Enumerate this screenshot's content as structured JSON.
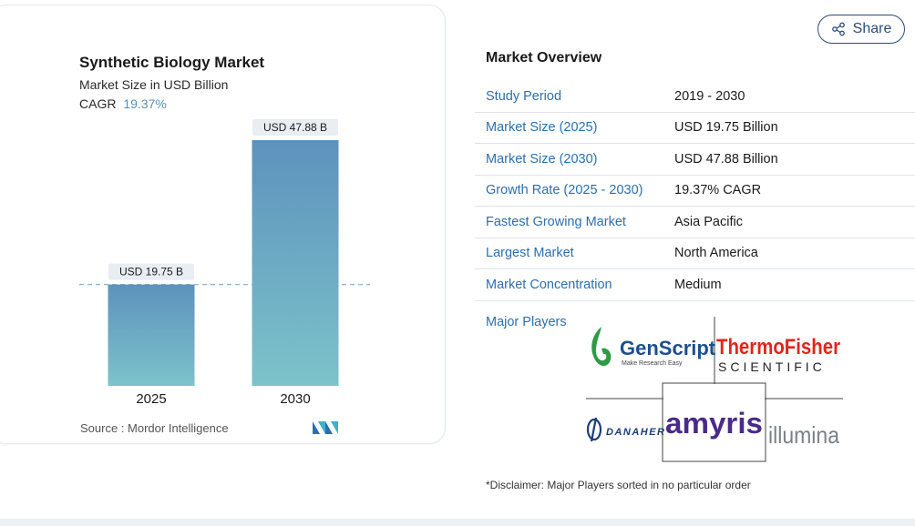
{
  "chart_data": {
    "type": "bar",
    "title": "Synthetic Biology Market",
    "subtitle": "Market Size in USD Billion",
    "cagr_label": "CAGR",
    "cagr_value": "19.37%",
    "categories": [
      "2025",
      "2030"
    ],
    "values": [
      19.75,
      47.88
    ],
    "data_labels": [
      "USD 19.75 B",
      "USD 47.88 B"
    ],
    "ylim": [
      0,
      50
    ],
    "reference_line_value": 19.75,
    "grid": false,
    "colors": {
      "bar_top": "#5d92bd",
      "bar_bottom": "#7cc3ca",
      "reference_line": "#8fb3cf",
      "label_bg": "#e8eef2"
    }
  },
  "source": {
    "label": "Source :",
    "value": "Mordor Intelligence"
  },
  "share": {
    "label": "Share",
    "icon": "share-icon"
  },
  "overview": {
    "title": "Market Overview",
    "rows": [
      {
        "label": "Study Period",
        "value": "2019 - 2030"
      },
      {
        "label": "Market Size (2025)",
        "value": "USD 19.75 Billion"
      },
      {
        "label": "Market Size (2030)",
        "value": "USD 47.88 Billion"
      },
      {
        "label": "Growth Rate (2025 - 2030)",
        "value": "19.37% CAGR"
      },
      {
        "label": "Fastest Growing Market",
        "value": "Asia Pacific"
      },
      {
        "label": "Largest Market",
        "value": "North America"
      },
      {
        "label": "Market Concentration",
        "value": "Medium"
      }
    ]
  },
  "major_players": {
    "label": "Major Players",
    "logos": [
      {
        "name": "GenScript",
        "tagline": "Make Research Easy",
        "color": "#1d4e8f",
        "accent": "#2e9b46"
      },
      {
        "name": "ThermoFisher",
        "sub": "SCIENTIFIC",
        "color": "#e1251b"
      },
      {
        "name": "DANAHER",
        "color": "#1c3f7a"
      },
      {
        "name": "amyris",
        "color": "#4a2a8a"
      },
      {
        "name": "illumina",
        "color": "#7a8088"
      }
    ]
  },
  "disclaimer": "*Disclaimer: Major Players sorted in no particular order"
}
